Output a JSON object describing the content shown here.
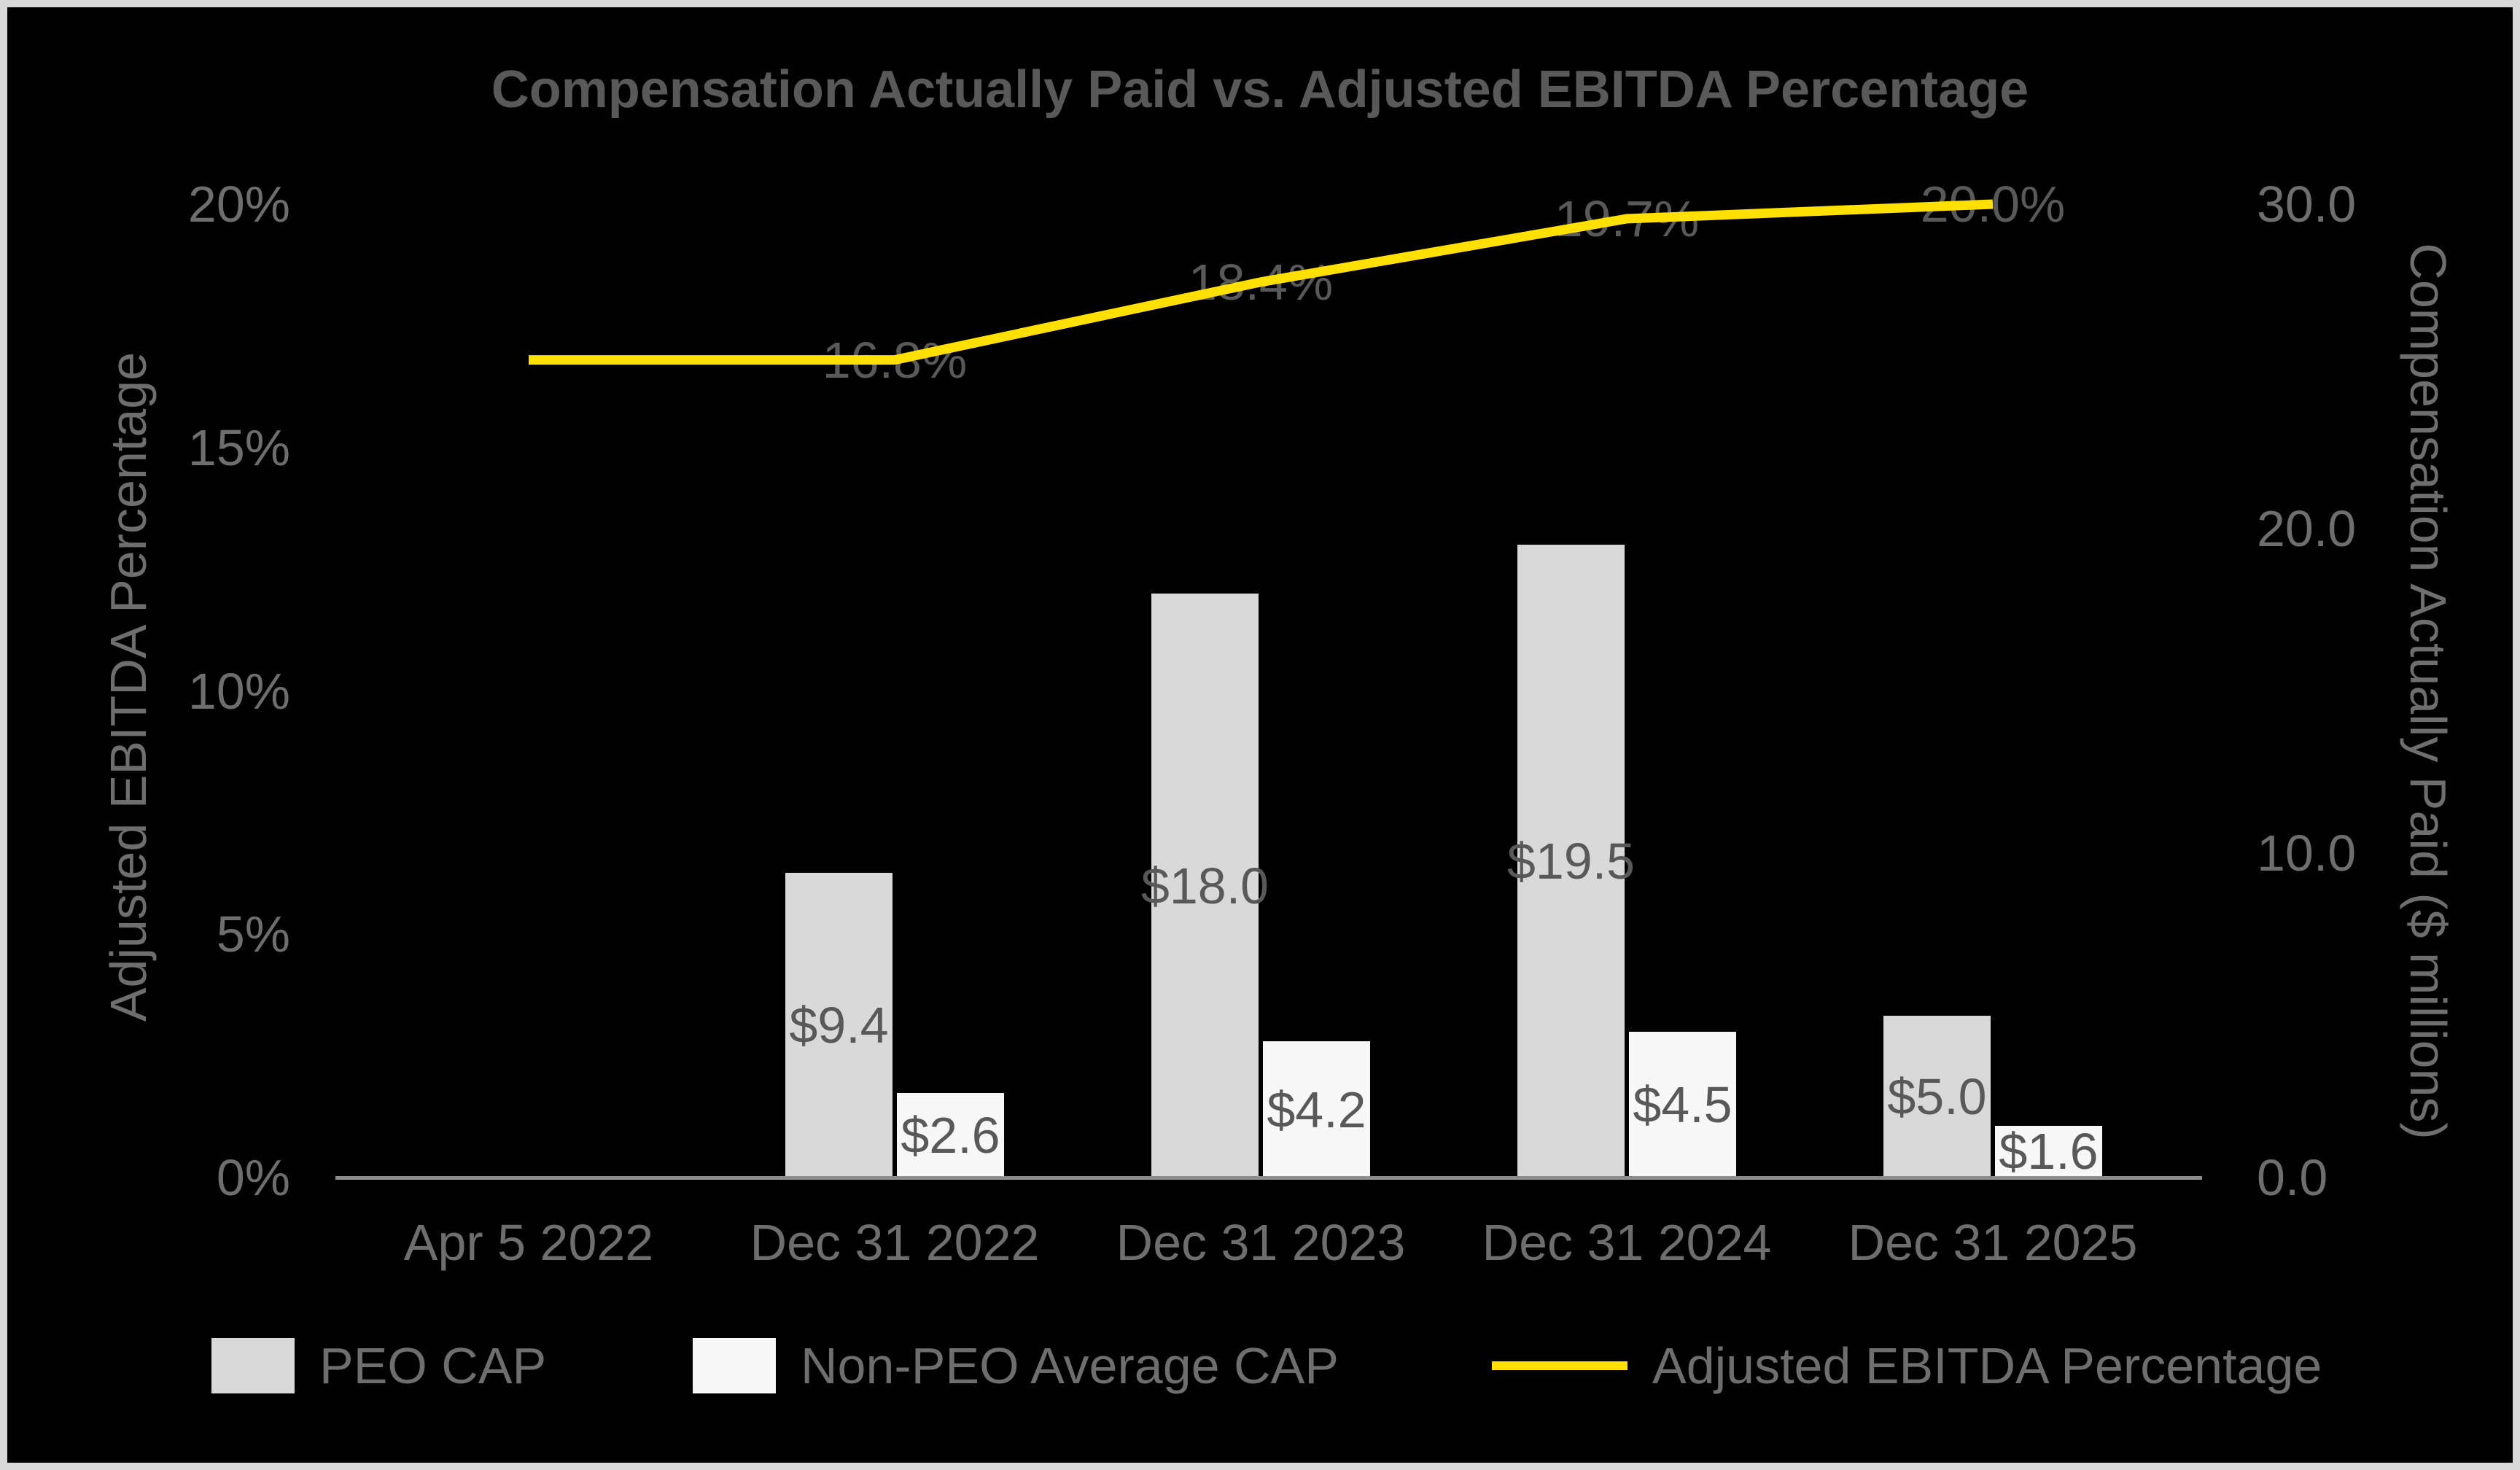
{
  "title": "Compensation Actually Paid vs. Adjusted EBITDA Percentage",
  "colors": {
    "background": "#000000",
    "frame_border": "#d8d8d8",
    "peo_bar": "#d9d9d9",
    "non_peo_bar": "#f7f7f7",
    "ebitda_line": "#ffe000",
    "axis_line": "#8c8c8c",
    "title_text": "#595959",
    "tick_text": "#6e6e6e",
    "data_label_text": "#595959"
  },
  "chart_data": {
    "type": "combo",
    "subtypes": [
      "bar",
      "bar",
      "line"
    ],
    "categories": [
      "Apr 5 2022",
      "Dec 31 2022",
      "Dec 31 2023",
      "Dec 31 2024",
      "Dec 31 2025"
    ],
    "series": [
      {
        "name": "PEO CAP",
        "type": "bar",
        "axis": "right",
        "color": "#d9d9d9",
        "values": [
          null,
          9.4,
          18.0,
          19.5,
          5.0
        ],
        "labels": [
          "",
          "$9.4",
          "$18.0",
          "$19.5",
          "$5.0"
        ]
      },
      {
        "name": "Non-PEO Average CAP",
        "type": "bar",
        "axis": "right",
        "color": "#f7f7f7",
        "values": [
          null,
          2.6,
          4.2,
          4.5,
          1.6
        ],
        "labels": [
          "",
          "$2.6",
          "$4.2",
          "$4.5",
          "$1.6"
        ]
      },
      {
        "name": "Adjusted EBITDA Percentage",
        "type": "line",
        "axis": "left",
        "color": "#ffe000",
        "values": [
          16.8,
          16.8,
          18.4,
          19.7,
          20.0
        ],
        "labels": [
          "",
          "16.8%",
          "18.4%",
          "19.7%",
          "20.0%"
        ]
      }
    ],
    "left_axis": {
      "title": "Adjusted EBITDA Percentage",
      "min": 0,
      "max": 20,
      "tick_values": [
        0,
        5,
        10,
        15,
        20
      ],
      "tick_labels": [
        "0%",
        "5%",
        "10%",
        "15%",
        "20%"
      ]
    },
    "right_axis": {
      "title": "Compensation Actually Paid ($ millions)",
      "min": 0,
      "max": 30,
      "tick_values": [
        0,
        10,
        20,
        30
      ],
      "tick_labels": [
        "0.0",
        "10.0",
        "20.0",
        "30.0"
      ]
    },
    "legend_position": "bottom",
    "gridlines": false,
    "background": "black"
  }
}
